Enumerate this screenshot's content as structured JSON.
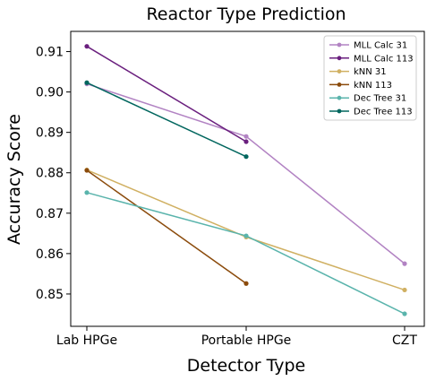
{
  "chart_data": {
    "type": "line",
    "title": "Reactor Type Prediction",
    "xlabel": "Detector Type",
    "ylabel": "Accuracy Score",
    "categories": [
      "Lab HPGe",
      "Portable HPGe",
      "CZT"
    ],
    "ylim": [
      0.842,
      0.915
    ],
    "yticks": [
      0.85,
      0.86,
      0.87,
      0.88,
      0.89,
      0.9,
      0.91
    ],
    "ytick_labels": [
      "0.85",
      "0.86",
      "0.87",
      "0.88",
      "0.89",
      "0.90",
      "0.91"
    ],
    "grid": false,
    "legend_position": "top-right",
    "series": [
      {
        "name": "MLL Calc 31",
        "color": "#b283c3",
        "values": [
          0.902,
          0.889,
          0.8575
        ]
      },
      {
        "name": "MLL Calc 113",
        "color": "#6a1f7e",
        "values": [
          0.9113,
          0.8877,
          null
        ]
      },
      {
        "name": "kNN 31",
        "color": "#d0b062",
        "values": [
          0.8807,
          0.8641,
          0.851
        ]
      },
      {
        "name": "kNN 113",
        "color": "#8b4b0c",
        "values": [
          0.8806,
          0.8526,
          null
        ]
      },
      {
        "name": "Dec Tree 31",
        "color": "#5ab4ac",
        "values": [
          0.8751,
          0.8644,
          0.8451
        ]
      },
      {
        "name": "Dec Tree 113",
        "color": "#01665e",
        "values": [
          0.9023,
          0.884,
          null
        ]
      }
    ]
  }
}
